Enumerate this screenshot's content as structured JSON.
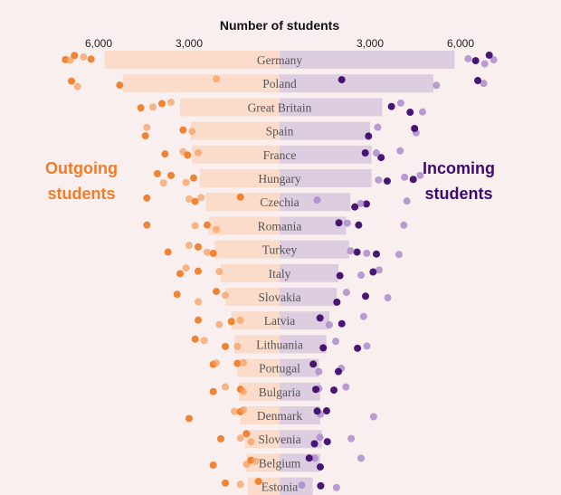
{
  "colors": {
    "background": "#f9efee",
    "outgoing_bar": "#fbdccb",
    "incoming_bar": "#dccde0",
    "outgoing_dot_light": "#f6a061",
    "outgoing_dot_dark": "#ef7d2a",
    "incoming_dot_light": "#a886c9",
    "incoming_dot_dark": "#3f0a6e"
  },
  "labels": {
    "outgoing": "Outgoing students",
    "incoming": "Incoming students"
  },
  "chart_data": {
    "type": "bar",
    "title": "Number of students",
    "axis_ticks": [
      "6,000",
      "3,000",
      "3,000",
      "6,000"
    ],
    "tick_values": [
      6000,
      3000,
      3000,
      6000
    ],
    "xlim": [
      0,
      7000
    ],
    "categories": [
      "Germany",
      "Poland",
      "Great Britain",
      "Spain",
      "France",
      "Hungary",
      "Czechia",
      "Romania",
      "Turkey",
      "Italy",
      "Slovakia",
      "Latvia",
      "Lithuania",
      "Portugal",
      "Bulgaria",
      "Denmark",
      "Slovenia",
      "Belgium",
      "Estonia"
    ],
    "series": [
      {
        "name": "Outgoing students",
        "values": [
          5800,
          5200,
          3300,
          2950,
          2900,
          2650,
          2450,
          2350,
          2150,
          1950,
          1800,
          1600,
          1500,
          1400,
          1350,
          1300,
          1150,
          1100,
          1050
        ],
        "scatter": [
          [
            7100,
            6950,
            6800,
            6500,
            6250
          ],
          [
            6900,
            6700,
            5300,
            2100
          ],
          [
            4600,
            4200,
            3900,
            3600
          ],
          [
            4450,
            4400,
            3200,
            2900
          ],
          [
            3800,
            3200,
            3050,
            2700
          ],
          [
            4050,
            3850,
            3600,
            3100,
            2850
          ],
          [
            4400,
            3000,
            2800,
            2600,
            1300
          ],
          [
            4400,
            2800,
            2400,
            2100
          ],
          [
            3700,
            3000,
            2700,
            2400,
            2200
          ],
          [
            3300,
            3100,
            2700,
            2000
          ],
          [
            3400,
            2700,
            2100,
            1800
          ],
          [
            2700,
            2000,
            1600,
            1300
          ],
          [
            2800,
            2500,
            1800,
            1400
          ],
          [
            2200,
            2100,
            1400,
            1200
          ],
          [
            2200,
            1800,
            1300,
            1200
          ],
          [
            3000,
            1500,
            1300,
            1200
          ],
          [
            1950,
            1300,
            1100,
            950
          ],
          [
            2200,
            1100,
            950,
            800
          ],
          [
            1800,
            1300,
            700
          ]
        ]
      },
      {
        "name": "Incoming students",
        "values": [
          5800,
          5100,
          3400,
          3000,
          3050,
          3050,
          2350,
          2200,
          2300,
          1950,
          1900,
          1650,
          1550,
          1300,
          1350,
          1350,
          1400,
          1350,
          1100
        ]
      }
    ]
  }
}
